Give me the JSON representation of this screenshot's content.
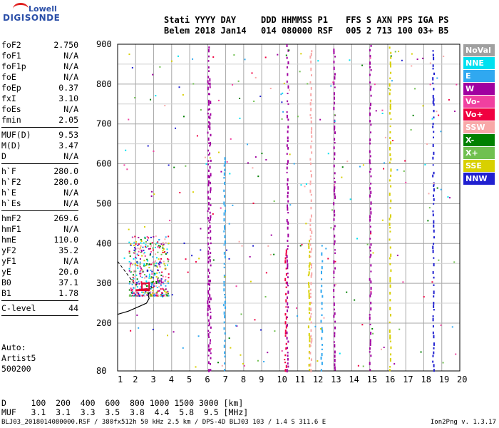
{
  "logo": {
    "line1": "Lowell",
    "line2": "DIGISONDE"
  },
  "header": {
    "labels": [
      {
        "text": "Stati YYYY DAY",
        "x": 230
      },
      {
        "text": "DDD HHMMSS P1",
        "x": 366
      },
      {
        "text": "FFS S AXN PPS IGA PS",
        "x": 485
      }
    ],
    "values": [
      {
        "text": "Belem 2018 Jan14",
        "x": 230
      },
      {
        "text": "014 080000 RSF",
        "x": 366
      },
      {
        "text": "005 2 713 100 03+ B5",
        "x": 485
      }
    ]
  },
  "params": {
    "groups": [
      [
        {
          "k": "foF2",
          "v": "2.750"
        },
        {
          "k": "foF1",
          "v": "N/A"
        },
        {
          "k": "foF1p",
          "v": "N/A"
        },
        {
          "k": "foE",
          "v": "N/A"
        },
        {
          "k": "foEp",
          "v": "0.37"
        },
        {
          "k": "fxI",
          "v": "3.10"
        },
        {
          "k": "foEs",
          "v": "N/A"
        },
        {
          "k": "fmin",
          "v": "2.05"
        }
      ],
      [
        {
          "k": "MUF(D)",
          "v": "9.53"
        },
        {
          "k": "M(D)",
          "v": "3.47"
        },
        {
          "k": "D",
          "v": "N/A"
        }
      ],
      [
        {
          "k": "h`F",
          "v": "280.0"
        },
        {
          "k": "h`F2",
          "v": "280.0"
        },
        {
          "k": "h`E",
          "v": "N/A"
        },
        {
          "k": "h`Es",
          "v": "N/A"
        }
      ],
      [
        {
          "k": "hmF2",
          "v": "269.6"
        },
        {
          "k": "hmF1",
          "v": "N/A"
        },
        {
          "k": "hmE",
          "v": "110.0"
        },
        {
          "k": "yF2",
          "v": "35.2"
        },
        {
          "k": "yF1",
          "v": "N/A"
        },
        {
          "k": "yE",
          "v": "20.0"
        },
        {
          "k": "B0",
          "v": "37.1"
        },
        {
          "k": "B1",
          "v": "1.78"
        }
      ],
      [
        {
          "k": "C-level",
          "v": "44"
        }
      ]
    ]
  },
  "auto": [
    "Auto:",
    "Artist5",
    "500200"
  ],
  "legend": [
    {
      "label": "NoVal",
      "color": "#a0a0a0"
    },
    {
      "label": "NNE",
      "color": "#00e0f0"
    },
    {
      "label": "E",
      "color": "#30a8f0"
    },
    {
      "label": "W",
      "color": "#a000a0"
    },
    {
      "label": "Vo-",
      "color": "#f040a0"
    },
    {
      "label": "Vo+",
      "color": "#f00040"
    },
    {
      "label": "SSW",
      "color": "#f8a8a8"
    },
    {
      "label": "X-",
      "color": "#008000"
    },
    {
      "label": "X+",
      "color": "#70c050"
    },
    {
      "label": "SSE",
      "color": "#d8d000"
    },
    {
      "label": "NNW",
      "color": "#2020d0"
    }
  ],
  "chart_data": {
    "type": "scatter",
    "xlim": [
      1,
      20
    ],
    "ylim": [
      80,
      900
    ],
    "x_ticks": [
      1,
      2,
      3,
      4,
      5,
      6,
      7,
      8,
      9,
      10,
      11,
      12,
      13,
      14,
      15,
      16,
      17,
      18,
      19,
      20
    ],
    "y_ticks": [
      80,
      200,
      300,
      400,
      500,
      600,
      700,
      800,
      900
    ],
    "grid": true,
    "trace": {
      "x": [
        2.0,
        2.2,
        2.4,
        2.6,
        2.75
      ],
      "y": [
        282,
        283,
        284,
        285,
        282
      ]
    },
    "trace_color": "#e00030",
    "profile": [
      [
        1.0,
        222
      ],
      [
        1.6,
        230
      ],
      [
        2.2,
        242
      ],
      [
        2.6,
        250
      ],
      [
        2.75,
        262
      ],
      [
        2.7,
        270
      ],
      [
        2.75,
        278
      ]
    ],
    "columns": [
      {
        "x": 6.0,
        "ymin": 85,
        "ymax": 900,
        "color": "#a000a0"
      },
      {
        "x": 6.1,
        "ymin": 85,
        "ymax": 820,
        "color": "#a000a0"
      },
      {
        "x": 6.9,
        "ymin": 85,
        "ymax": 630,
        "color": "#30a8f0"
      },
      {
        "x": 10.3,
        "ymin": 85,
        "ymax": 400,
        "color": "#f00040"
      },
      {
        "x": 10.4,
        "ymin": 85,
        "ymax": 900,
        "color": "#a000a0"
      },
      {
        "x": 11.6,
        "ymin": 85,
        "ymax": 420,
        "color": "#d8d000"
      },
      {
        "x": 11.7,
        "ymin": 85,
        "ymax": 900,
        "color": "#f8a8a8"
      },
      {
        "x": 12.3,
        "ymin": 85,
        "ymax": 400,
        "color": "#30a8f0"
      },
      {
        "x": 13.0,
        "ymin": 85,
        "ymax": 900,
        "color": "#a000a0"
      },
      {
        "x": 15.0,
        "ymin": 85,
        "ymax": 900,
        "color": "#a000a0"
      },
      {
        "x": 16.1,
        "ymin": 85,
        "ymax": 900,
        "color": "#d8d000"
      },
      {
        "x": 18.5,
        "ymin": 85,
        "ymax": 900,
        "color": "#2020d0"
      }
    ],
    "cluster": {
      "xmin": 1.6,
      "xmax": 3.8,
      "ymin": 270,
      "ymax": 420
    }
  },
  "bottom_table": {
    "row1": "D     100  200  400  600  800 1000 1500 3000 [km]",
    "row2": "MUF   3.1  3.1  3.3  3.5  3.8  4.4  5.8  9.5 [MHz]"
  },
  "footer": "BLJ03_2018014080000.RSF / 380fx512h 50 kHz 2.5 km / DPS-4D BLJ03 103 / 1.4 S 311.6 E",
  "version": "Ion2Png v. 1.3.17"
}
